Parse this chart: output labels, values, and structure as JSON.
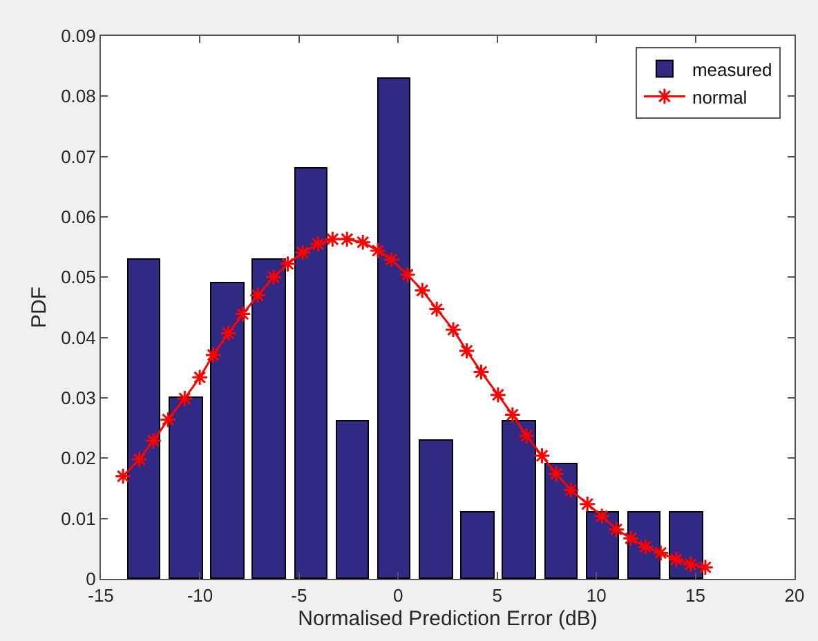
{
  "chart_data": {
    "type": "histogram",
    "xlabel": "Normalised Prediction Error (dB)",
    "ylabel": "PDF",
    "bins": [
      -13.84,
      -11.74,
      -9.64,
      -7.53,
      -5.43,
      -3.33,
      -1.22,
      0.88,
      2.98,
      5.09,
      7.19,
      9.29,
      11.4,
      13.5,
      15.6
    ],
    "series": [
      {
        "name": "measured",
        "color": "#312a84",
        "values": [
          0.053,
          0.03,
          0.049,
          0.053,
          0.068,
          0.026,
          0.083,
          0.023,
          0.011,
          0.026,
          0.019,
          0.011,
          0.011,
          0.011
        ]
      },
      {
        "name": "normal",
        "type": "line",
        "color": "#ff0000",
        "marker": "cross",
        "x": [
          -13.88,
          -13.06,
          -12.35,
          -11.61,
          -10.77,
          -10.01,
          -9.33,
          -8.57,
          -7.84,
          -7.08,
          -6.28,
          -5.57,
          -4.82,
          -4.04,
          -3.31,
          -2.58,
          -1.78,
          -1.02,
          -0.34,
          0.47,
          1.22,
          1.95,
          2.78,
          3.46,
          4.19,
          5.04,
          5.77,
          6.48,
          7.26,
          7.97,
          8.72,
          9.55,
          10.28,
          11.01,
          11.74,
          12.48,
          13.25,
          14.03,
          14.76,
          15.5
        ],
        "values": [
          0.017,
          0.0198,
          0.0229,
          0.0264,
          0.0299,
          0.0334,
          0.0371,
          0.0407,
          0.0439,
          0.047,
          0.05,
          0.0522,
          0.0541,
          0.0555,
          0.0563,
          0.0563,
          0.0558,
          0.0544,
          0.0529,
          0.0504,
          0.0478,
          0.0447,
          0.0413,
          0.0378,
          0.0343,
          0.0305,
          0.0272,
          0.0237,
          0.0204,
          0.0174,
          0.0147,
          0.0124,
          0.0104,
          0.0082,
          0.0067,
          0.0053,
          0.0043,
          0.0032,
          0.0024,
          0.0019
        ]
      }
    ],
    "xlim": [
      -15,
      20
    ],
    "xticks": [
      -15,
      -10,
      -5,
      0,
      5,
      10,
      15,
      20
    ],
    "ylim": [
      0,
      0.09
    ],
    "yticks": [
      0,
      0.01,
      0.02,
      0.03,
      0.04,
      0.05,
      0.06,
      0.07,
      0.08,
      0.09
    ],
    "grid": false,
    "legend": "top right"
  }
}
